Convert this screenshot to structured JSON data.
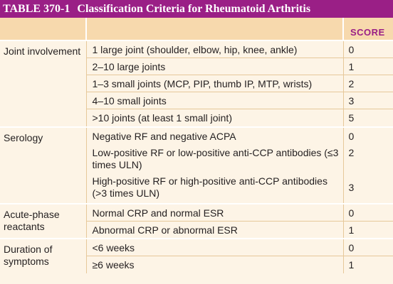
{
  "table": {
    "number": "TABLE 370-1",
    "title": "Classification Criteria for Rheumatoid Arthritis",
    "headers": {
      "criterion": "",
      "description": "",
      "score": "SCORE"
    },
    "groups": [
      {
        "criterion": "Joint involvement",
        "rows": [
          {
            "description": "1 large joint (shoulder, elbow, hip, knee, ankle)",
            "score": "0"
          },
          {
            "description": "2–10 large joints",
            "score": "1"
          },
          {
            "description": "1–3 small joints (MCP, PIP, thumb IP, MTP, wrists)",
            "score": "2"
          },
          {
            "description": "4–10 small joints",
            "score": "3"
          },
          {
            "description": ">10 joints (at least 1 small joint)",
            "score": "5"
          }
        ]
      },
      {
        "criterion": "Serology",
        "rows": [
          {
            "description": "Negative RF and negative ACPA",
            "score": "0"
          },
          {
            "description": "Low-positive RF or low-positive anti-CCP antibodies (≤3 times ULN)",
            "score": "2"
          },
          {
            "description": "High-positive RF or high-positive anti-CCP antibodies (>3 times ULN)",
            "score": "3"
          }
        ]
      },
      {
        "criterion": "Acute-phase reactants",
        "rows": [
          {
            "description": "Normal CRP and normal ESR",
            "score": "0"
          },
          {
            "description": "Abnormal CRP or abnormal ESR",
            "score": "1"
          }
        ]
      },
      {
        "criterion": "Duration of symptoms",
        "rows": [
          {
            "description": "<6 weeks",
            "score": "0"
          },
          {
            "description": "≥6 weeks",
            "score": "1"
          }
        ]
      }
    ]
  }
}
